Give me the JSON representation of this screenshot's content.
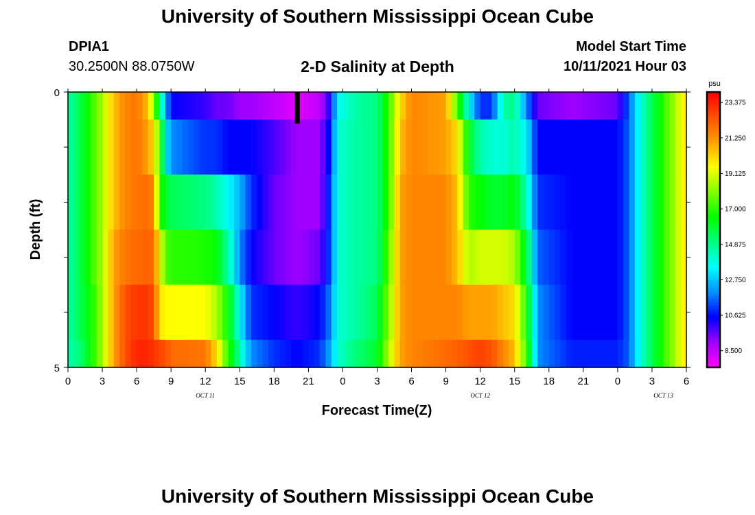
{
  "header": {
    "title": "University of Southern Mississippi Ocean Cube",
    "station": "DPIA1",
    "coords": "30.2500N  88.0750W",
    "chart_title": "2-D Salinity at Depth",
    "model_label": "Model Start Time",
    "model_time": "10/11/2021 Hour 03"
  },
  "footer": {
    "title": "University of Southern Mississippi Ocean Cube"
  },
  "colors": {
    "scale": [
      "#ff00ff",
      "#a000ff",
      "#0000ff",
      "#0090ff",
      "#00ffff",
      "#00ff80",
      "#00ff00",
      "#80ff00",
      "#ffff00",
      "#ffa000",
      "#ff5000",
      "#ff0000"
    ]
  },
  "chart_data": {
    "type": "heatmap",
    "title": "2-D Salinity at Depth",
    "xlabel": "Forecast Time(Z)",
    "ylabel": "Depth (ft)",
    "x_tick_labels": [
      "0",
      "3",
      "6",
      "9",
      "12",
      "15",
      "18",
      "21",
      "0",
      "3",
      "6",
      "9",
      "12",
      "15",
      "18",
      "21",
      "0",
      "3",
      "6"
    ],
    "date_labels": [
      {
        "label": "OCT 11",
        "hour": 12
      },
      {
        "label": "OCT 12",
        "hour": 36
      },
      {
        "label": "OCT 13",
        "hour": 52
      }
    ],
    "x_range_hours": [
      0,
      54
    ],
    "y_tick_labels": [
      "0",
      "5"
    ],
    "ylim": [
      0,
      5
    ],
    "colorbar": {
      "unit": "psu",
      "tick_labels": [
        "23.375",
        "21.250",
        "19.125",
        "17.000",
        "14.875",
        "12.750",
        "10.625",
        "8.500"
      ],
      "range": [
        7.5,
        24
      ]
    },
    "marker_hour": 20,
    "depth_layers": [
      "0-0.5",
      "0.5-1.5",
      "1.5-2.5",
      "2.5-3.5",
      "3.5-4.5",
      "4.5-5"
    ],
    "keyframes": [
      {
        "hour": 0,
        "values": [
          14.5,
          14.5,
          14.5,
          14.5,
          14.5,
          14.5
        ]
      },
      {
        "hour": 1,
        "values": [
          15.5,
          15.5,
          15.5,
          15.5,
          15.5,
          15.0
        ]
      },
      {
        "hour": 2,
        "values": [
          17.0,
          17.0,
          17.0,
          17.0,
          16.5,
          16.5
        ]
      },
      {
        "hour": 3,
        "values": [
          18.5,
          18.5,
          18.5,
          18.5,
          18.5,
          18.5
        ]
      },
      {
        "hour": 4,
        "values": [
          20.5,
          20.5,
          20.5,
          21.0,
          21.0,
          21.0
        ]
      },
      {
        "hour": 5,
        "values": [
          21.5,
          21.5,
          21.5,
          21.8,
          22.5,
          22.5
        ]
      },
      {
        "hour": 6,
        "values": [
          21.8,
          21.8,
          21.8,
          22.0,
          23.0,
          23.3
        ]
      },
      {
        "hour": 7,
        "values": [
          20.5,
          21.0,
          22.0,
          22.2,
          23.0,
          23.3
        ]
      },
      {
        "hour": 7.5,
        "values": [
          18.0,
          20.0,
          21.5,
          22.0,
          22.5,
          23.0
        ]
      },
      {
        "hour": 8,
        "values": [
          15.5,
          17.5,
          17.0,
          19.5,
          20.0,
          22.8
        ]
      },
      {
        "hour": 8.5,
        "values": [
          12.5,
          13.5,
          16.0,
          17.5,
          19.5,
          22.5
        ]
      },
      {
        "hour": 9,
        "values": [
          10.5,
          12.0,
          15.5,
          17.0,
          19.5,
          22.0
        ]
      },
      {
        "hour": 12,
        "values": [
          10.0,
          11.0,
          15.0,
          16.8,
          19.5,
          21.8
        ]
      },
      {
        "hour": 13,
        "values": [
          9.5,
          11.0,
          14.5,
          16.5,
          18.5,
          20.0
        ]
      },
      {
        "hour": 14,
        "values": [
          9.5,
          10.5,
          13.5,
          14.5,
          16.5,
          17.0
        ]
      },
      {
        "hour": 15,
        "values": [
          9.0,
          10.5,
          12.5,
          12.0,
          13.5,
          14.5
        ]
      },
      {
        "hour": 16,
        "values": [
          9.0,
          10.5,
          11.0,
          10.5,
          11.0,
          12.0
        ]
      },
      {
        "hour": 18,
        "values": [
          8.5,
          9.8,
          9.5,
          9.5,
          10.5,
          11.0
        ]
      },
      {
        "hour": 20,
        "values": [
          8.0,
          9.0,
          9.0,
          9.0,
          10.0,
          10.5
        ]
      },
      {
        "hour": 22,
        "values": [
          8.5,
          9.0,
          9.0,
          9.5,
          10.5,
          11.0
        ]
      },
      {
        "hour": 23,
        "values": [
          10.5,
          11.0,
          11.5,
          11.5,
          12.0,
          12.5
        ]
      },
      {
        "hour": 23.5,
        "values": [
          13.5,
          14.0,
          14.0,
          14.0,
          14.0,
          14.0
        ]
      },
      {
        "hour": 25,
        "values": [
          14.5,
          14.5,
          14.5,
          14.5,
          14.5,
          15.0
        ]
      },
      {
        "hour": 27,
        "values": [
          15.0,
          15.0,
          15.0,
          15.0,
          15.5,
          16.0
        ]
      },
      {
        "hour": 28,
        "values": [
          17.0,
          17.0,
          17.0,
          17.5,
          18.0,
          18.5
        ]
      },
      {
        "hour": 29,
        "values": [
          20.0,
          20.5,
          21.0,
          21.0,
          21.0,
          21.0
        ]
      },
      {
        "hour": 30,
        "values": [
          21.5,
          21.5,
          21.5,
          21.5,
          21.5,
          21.5
        ]
      },
      {
        "hour": 33,
        "values": [
          21.0,
          21.0,
          21.5,
          21.5,
          21.5,
          22.0
        ]
      },
      {
        "hour": 34,
        "values": [
          17.5,
          20.0,
          20.5,
          20.5,
          21.5,
          22.2
        ]
      },
      {
        "hour": 35,
        "values": [
          13.5,
          16.0,
          17.0,
          18.5,
          21.0,
          22.5
        ]
      },
      {
        "hour": 36,
        "values": [
          11.0,
          14.5,
          16.5,
          19.0,
          21.0,
          22.8
        ]
      },
      {
        "hour": 37,
        "values": [
          11.0,
          14.0,
          16.0,
          19.0,
          21.0,
          22.5
        ]
      },
      {
        "hour": 38,
        "values": [
          14.5,
          14.0,
          16.0,
          19.0,
          20.5,
          21.5
        ]
      },
      {
        "hour": 39,
        "values": [
          15.0,
          14.5,
          16.5,
          18.5,
          20.0,
          20.5
        ]
      },
      {
        "hour": 40,
        "values": [
          12.0,
          13.5,
          14.5,
          16.0,
          17.0,
          17.5
        ]
      },
      {
        "hour": 41,
        "values": [
          9.5,
          10.5,
          11.0,
          11.5,
          12.0,
          12.0
        ]
      },
      {
        "hour": 44,
        "values": [
          9.0,
          10.5,
          10.5,
          10.5,
          10.5,
          10.8
        ]
      },
      {
        "hour": 48,
        "values": [
          9.5,
          10.5,
          10.5,
          10.5,
          10.5,
          10.8
        ]
      },
      {
        "hour": 49,
        "values": [
          11.5,
          11.5,
          11.5,
          11.5,
          11.5,
          11.5
        ]
      },
      {
        "hour": 50,
        "values": [
          14.0,
          14.0,
          14.0,
          14.0,
          14.0,
          14.0
        ]
      },
      {
        "hour": 51,
        "values": [
          15.5,
          15.5,
          15.5,
          15.5,
          15.5,
          15.5
        ]
      },
      {
        "hour": 52,
        "values": [
          17.0,
          17.0,
          17.0,
          17.0,
          17.0,
          17.0
        ]
      },
      {
        "hour": 53,
        "values": [
          18.5,
          18.5,
          18.5,
          18.5,
          18.5,
          18.5
        ]
      },
      {
        "hour": 54,
        "values": [
          20.0,
          20.0,
          20.0,
          20.0,
          20.0,
          20.0
        ]
      }
    ]
  }
}
